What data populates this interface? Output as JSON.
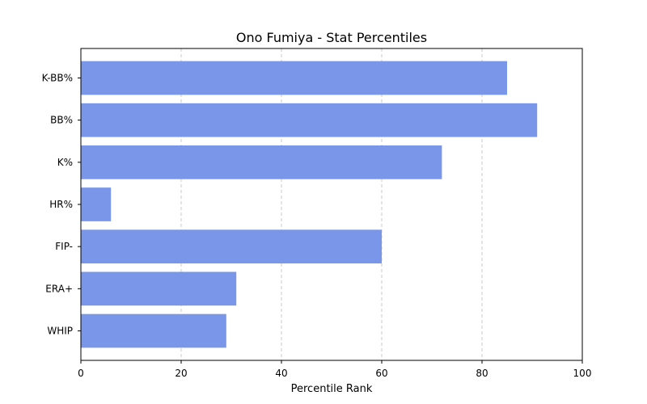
{
  "chart_data": {
    "type": "bar",
    "orientation": "horizontal",
    "title": "Ono Fumiya - Stat Percentiles",
    "xlabel": "Percentile Rank",
    "ylabel": "",
    "categories": [
      "K-BB%",
      "BB%",
      "K%",
      "HR%",
      "FIP-",
      "ERA+",
      "WHIP"
    ],
    "values": [
      85,
      91,
      72,
      6,
      60,
      31,
      29
    ],
    "xlim": [
      0,
      100
    ],
    "xticks": [
      0,
      20,
      40,
      60,
      80,
      100
    ],
    "grid": "x-dashed",
    "bar_color": "#7996e8"
  }
}
